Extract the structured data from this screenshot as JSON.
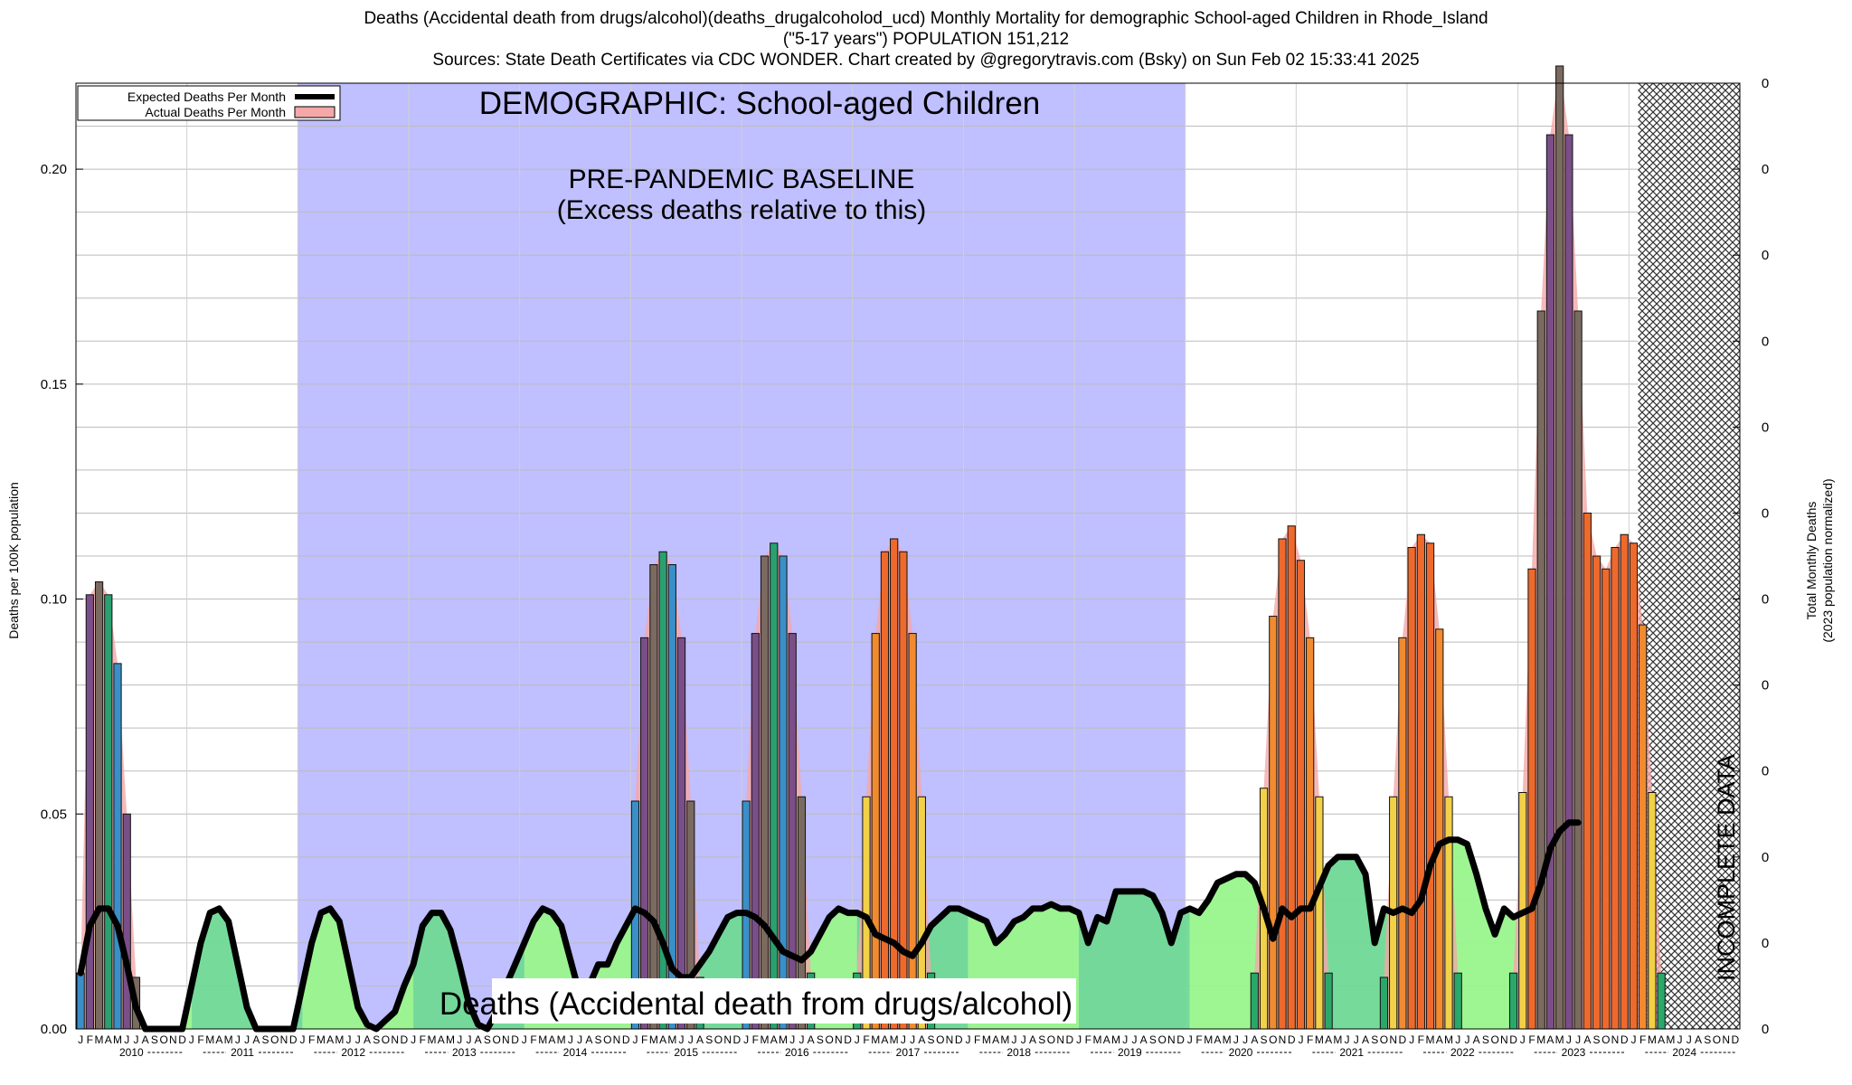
{
  "title": {
    "line1": "Deaths (Accidental death from drugs/alcohol)(deaths_drugalcoholod_ucd) Monthly Mortality for demographic School-aged Children in Rhode_Island",
    "line2": "(\"5-17 years\") POPULATION 151,212",
    "line3": "Sources: State Death Certificates via CDC WONDER.              Chart created by @gregorytravis.com (Bsky) on Sun Feb 02 15:33:41 2025"
  },
  "legend": {
    "expected": "Expected Deaths Per Month",
    "actual": "Actual Deaths Per Month"
  },
  "annotations": {
    "demographic": "DEMOGRAPHIC: School-aged Children",
    "baseline_line1": "PRE-PANDEMIC BASELINE",
    "baseline_line2": "(Excess deaths relative to this)",
    "cause": "Deaths (Accidental death from drugs/alcohol)",
    "incomplete": "INCOMPLETE DATA"
  },
  "colors": {
    "baseline_band": "#c0bfff",
    "incomplete_hatch": "#333333",
    "expected_line": "#000000",
    "actual_fill": "#f4a8a8"
  },
  "chart_data": {
    "type": "bar",
    "ylabel_left": "Deaths per 100K population",
    "ylabel_right_line1": "Total Monthly Deaths",
    "ylabel_right_line2": "(2023 population normalized)",
    "ylim": [
      0,
      0.22
    ],
    "yticks_left": [
      "0.00",
      "0.05",
      "0.10",
      "0.15",
      "0.20"
    ],
    "yticks_left_values": [
      0,
      0.05,
      0.1,
      0.15,
      0.2
    ],
    "yticks_right": [
      "0",
      "0",
      "0",
      "0",
      "0",
      "0",
      "0",
      "0",
      "0",
      "0",
      "0",
      "0"
    ],
    "month_letters": [
      "J",
      "F",
      "M",
      "A",
      "M",
      "J",
      "J",
      "A",
      "S",
      "O",
      "N",
      "D"
    ],
    "years": [
      "2010",
      "2011",
      "2012",
      "2013",
      "2014",
      "2015",
      "2016",
      "2017",
      "2018",
      "2019",
      "2020",
      "2021",
      "2022",
      "2023",
      "2024"
    ],
    "baseline_period": [
      "2012-01",
      "2019-12"
    ],
    "incomplete_period": [
      "2024-02",
      "2024-12"
    ],
    "actual_groups": [
      {
        "start": "2010-01",
        "values": [
          0.013,
          0.101,
          0.104,
          0.101,
          0.085,
          0.05,
          0.012
        ]
      },
      {
        "start": "2015-01",
        "values": [
          0.053,
          0.091,
          0.108,
          0.111,
          0.108,
          0.091,
          0.053,
          0.012
        ]
      },
      {
        "start": "2016-01",
        "values": [
          0.053,
          0.092,
          0.11,
          0.113,
          0.11,
          0.092,
          0.054,
          0.013
        ]
      },
      {
        "start": "2017-01",
        "values": [
          0.013,
          0.054,
          0.092,
          0.111,
          0.114,
          0.111,
          0.092,
          0.054,
          0.013
        ]
      },
      {
        "start": "2020-08",
        "values": [
          0.013,
          0.056,
          0.096,
          0.114,
          0.117,
          0.109,
          0.091,
          0.054,
          0.013
        ]
      },
      {
        "start": "2021-10",
        "values": [
          0.012,
          0.054,
          0.091,
          0.112,
          0.115,
          0.113,
          0.093,
          0.054,
          0.013
        ]
      },
      {
        "start": "2022-12",
        "values": [
          0.013,
          0.055,
          0.107,
          0.167,
          0.208,
          0.224,
          0.208,
          0.167,
          0.12,
          0.11,
          0.107,
          0.112,
          0.115,
          0.113,
          0.094,
          0.055,
          0.013
        ]
      }
    ],
    "expected_line": [
      0.013,
      0.024,
      0.028,
      0.028,
      0.024,
      0.015,
      0.005,
      0.0,
      0.0,
      0.0,
      0.0,
      0.0,
      0.01,
      0.02,
      0.027,
      0.028,
      0.025,
      0.015,
      0.005,
      0.0,
      0.0,
      0.0,
      0.0,
      0.0,
      0.01,
      0.02,
      0.027,
      0.028,
      0.025,
      0.015,
      0.005,
      0.001,
      0.0,
      0.002,
      0.004,
      0.01,
      0.015,
      0.024,
      0.027,
      0.027,
      0.023,
      0.015,
      0.006,
      0.001,
      0.0,
      0.004,
      0.01,
      0.015,
      0.02,
      0.025,
      0.028,
      0.027,
      0.024,
      0.016,
      0.008,
      0.01,
      0.015,
      0.015,
      0.02,
      0.024,
      0.028,
      0.027,
      0.025,
      0.02,
      0.014,
      0.012,
      0.012,
      0.015,
      0.018,
      0.022,
      0.026,
      0.027,
      0.027,
      0.026,
      0.024,
      0.021,
      0.018,
      0.017,
      0.016,
      0.018,
      0.022,
      0.026,
      0.028,
      0.027,
      0.027,
      0.026,
      0.022,
      0.021,
      0.02,
      0.018,
      0.017,
      0.02,
      0.024,
      0.026,
      0.028,
      0.028,
      0.027,
      0.026,
      0.025,
      0.02,
      0.022,
      0.025,
      0.026,
      0.028,
      0.028,
      0.029,
      0.028,
      0.028,
      0.027,
      0.02,
      0.026,
      0.025,
      0.032,
      0.032,
      0.032,
      0.032,
      0.031,
      0.027,
      0.02,
      0.027,
      0.028,
      0.027,
      0.03,
      0.034,
      0.035,
      0.036,
      0.036,
      0.034,
      0.028,
      0.021,
      0.028,
      0.026,
      0.028,
      0.028,
      0.033,
      0.038,
      0.04,
      0.04,
      0.04,
      0.036,
      0.02,
      0.028,
      0.027,
      0.028,
      0.027,
      0.03,
      0.038,
      0.043,
      0.044,
      0.044,
      0.043,
      0.036,
      0.028,
      0.022,
      0.028,
      0.026,
      0.027,
      0.028,
      0.034,
      0.042,
      0.046,
      0.048,
      0.048
    ]
  }
}
